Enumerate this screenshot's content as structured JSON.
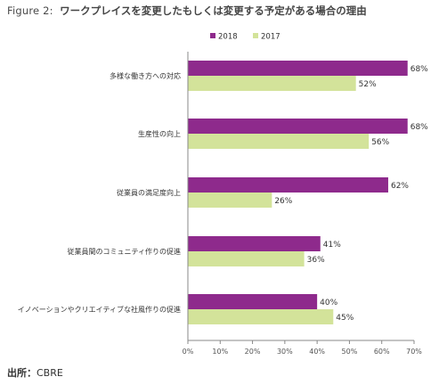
{
  "figure_label": "Figure 2:",
  "title": "ワークプレイスを変更したもしくは変更する予定がある場合の理由",
  "source_label": "出所：",
  "source_value": "CBRE",
  "colors": {
    "series_2018": "#8e2a8c",
    "series_2017": "#d3e39a",
    "axis": "#888888"
  },
  "chart_data": {
    "type": "bar",
    "orientation": "horizontal",
    "categories": [
      "多様な働き方への対応",
      "生産性の向上",
      "従業員の満足度向上",
      "従業員間のコミュニティ作りの促進",
      "イノベーションやクリエイティブな社風作りの促進"
    ],
    "series": [
      {
        "name": "2018",
        "values": [
          68,
          68,
          62,
          41,
          40
        ],
        "labels": [
          "68%",
          "68%",
          "62%",
          "41%",
          "40%"
        ]
      },
      {
        "name": "2017",
        "values": [
          52,
          56,
          26,
          36,
          45
        ],
        "labels": [
          "52%",
          "56%",
          "26%",
          "36%",
          "45%"
        ]
      }
    ],
    "xlim": [
      0,
      70
    ],
    "xticks": [
      "0%",
      "10%",
      "20%",
      "30%",
      "40%",
      "50%",
      "60%",
      "70%"
    ],
    "legend_position": "top",
    "grid": false
  }
}
